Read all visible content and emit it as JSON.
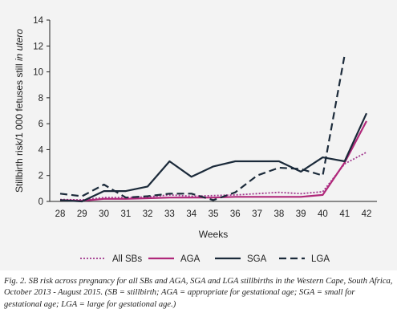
{
  "chart_data": {
    "type": "line",
    "xlabel": "Weeks",
    "ylabel": "Stillbirth risk/1 000 fetuses still ",
    "ylabel_italic": "in utero",
    "x": [
      28,
      29,
      30,
      31,
      32,
      33,
      34,
      35,
      36,
      37,
      38,
      39,
      40,
      41,
      42
    ],
    "ylim": [
      0,
      14
    ],
    "yticks": [
      0,
      2,
      4,
      6,
      8,
      10,
      12,
      14
    ],
    "grid": false,
    "legend_position": "bottom",
    "series": [
      {
        "name": "All SBs",
        "style": "dotted",
        "color": "#a0368c",
        "values": [
          0.15,
          0.12,
          0.3,
          0.3,
          0.35,
          0.5,
          0.4,
          0.45,
          0.5,
          0.6,
          0.7,
          0.6,
          0.75,
          2.9,
          3.8
        ]
      },
      {
        "name": "AGA",
        "style": "solid",
        "color": "#b0287a",
        "values": [
          0.1,
          0.05,
          0.2,
          0.2,
          0.25,
          0.3,
          0.3,
          0.3,
          0.35,
          0.35,
          0.35,
          0.35,
          0.5,
          3.0,
          6.2
        ]
      },
      {
        "name": "SGA",
        "style": "solid",
        "color": "#1b2a3a",
        "values": [
          0.1,
          0.0,
          0.8,
          0.8,
          1.15,
          3.1,
          1.9,
          2.7,
          3.1,
          3.1,
          3.1,
          2.3,
          3.4,
          3.1,
          6.8
        ]
      },
      {
        "name": "LGA",
        "style": "dashed",
        "color": "#1b2a3a",
        "values": [
          0.6,
          0.4,
          1.3,
          0.3,
          0.4,
          0.6,
          0.6,
          0.1,
          0.7,
          2.0,
          2.6,
          2.5,
          2.0,
          11.3,
          null
        ]
      }
    ]
  },
  "caption": "Fig. 2. SB risk across pregnancy for all SBs and AGA, SGA and LGA stillbirths in the Western Cape, South Africa, October 2013 - August 2015. (SB = stillbirth; AGA = appropriate for gestational age; SGA = small for gestational age; LGA = large for gestational age.)"
}
